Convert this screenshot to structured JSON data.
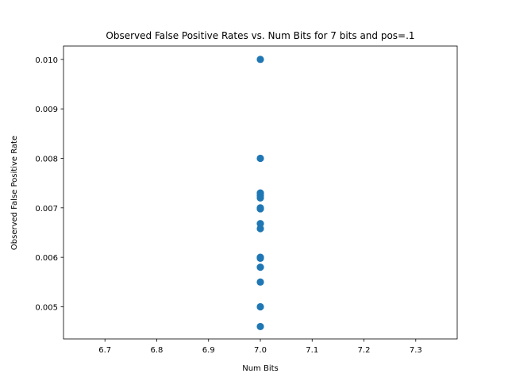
{
  "chart_data": {
    "type": "scatter",
    "title": "Observed False Positive Rates vs. Num Bits for 7 bits and pos=.1",
    "xlabel": "Num Bits",
    "ylabel": "Observed False Positive Rate",
    "xlim": [
      6.62,
      7.38
    ],
    "ylim": [
      0.00435,
      0.01027
    ],
    "xticks": [
      "6.7",
      "6.8",
      "6.9",
      "7.0",
      "7.1",
      "7.2",
      "7.3"
    ],
    "xtick_values": [
      6.7,
      6.8,
      6.9,
      7.0,
      7.1,
      7.2,
      7.3
    ],
    "yticks": [
      "0.005",
      "0.006",
      "0.007",
      "0.008",
      "0.009",
      "0.010"
    ],
    "ytick_values": [
      0.005,
      0.006,
      0.007,
      0.008,
      0.009,
      0.01
    ],
    "grid": false,
    "marker_color": "#1f77b4",
    "points": [
      {
        "x": 7.0,
        "y": 0.01
      },
      {
        "x": 7.0,
        "y": 0.008
      },
      {
        "x": 7.0,
        "y": 0.0073
      },
      {
        "x": 7.0,
        "y": 0.00725
      },
      {
        "x": 7.0,
        "y": 0.0072
      },
      {
        "x": 7.0,
        "y": 0.007
      },
      {
        "x": 7.0,
        "y": 0.00698
      },
      {
        "x": 7.0,
        "y": 0.00668
      },
      {
        "x": 7.0,
        "y": 0.00658
      },
      {
        "x": 7.0,
        "y": 0.006
      },
      {
        "x": 7.0,
        "y": 0.00598
      },
      {
        "x": 7.0,
        "y": 0.0058
      },
      {
        "x": 7.0,
        "y": 0.0055
      },
      {
        "x": 7.0,
        "y": 0.005
      },
      {
        "x": 7.0,
        "y": 0.0046
      }
    ]
  }
}
